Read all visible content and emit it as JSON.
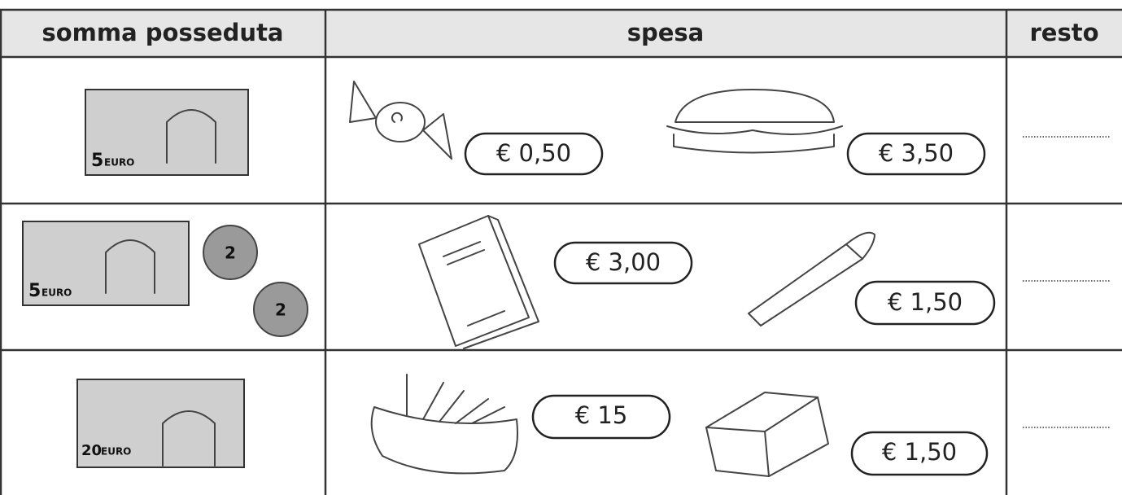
{
  "table": {
    "headers": [
      "somma posseduta",
      "spesa",
      "resto"
    ],
    "rows": [
      {
        "money": {
          "notes": [
            {
              "denomination": "5",
              "currency": "EURO"
            }
          ],
          "coins": []
        },
        "prices": [
          "€ 0,50",
          "€ 3,50"
        ]
      },
      {
        "money": {
          "notes": [
            {
              "denomination": "5",
              "currency": "EURO"
            }
          ],
          "coins": [
            "2",
            "2"
          ]
        },
        "prices": [
          "€ 3,00",
          "€ 1,50"
        ]
      },
      {
        "money": {
          "notes": [
            {
              "denomination": "20",
              "currency": "EURO"
            }
          ],
          "coins": []
        },
        "prices": [
          "€ 15",
          "€ 1,50"
        ]
      }
    ]
  }
}
